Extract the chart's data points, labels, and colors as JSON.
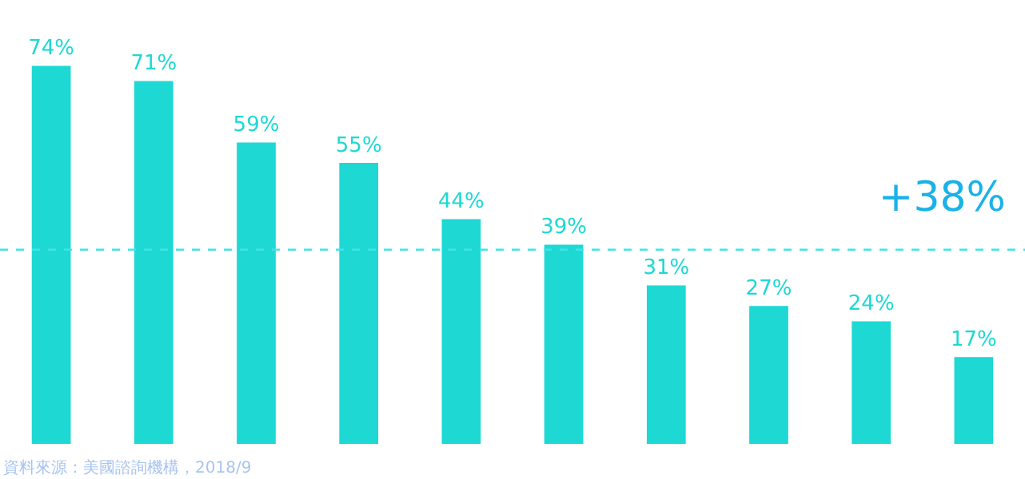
{
  "chart_data": {
    "type": "bar",
    "categories": [
      null,
      null,
      null,
      null,
      null,
      null,
      null,
      null,
      null,
      null
    ],
    "values": [
      74,
      71,
      59,
      55,
      44,
      39,
      31,
      27,
      24,
      17
    ],
    "color": "#1ed8d4",
    "value_labels": [
      "74%",
      "71%",
      "59%",
      "55%",
      "44%",
      "39%",
      "31%",
      "27%",
      "24%",
      "17%"
    ],
    "ref_lines": [
      {
        "axis": "y",
        "value": 38,
        "label": "+38%",
        "color": "#40e4e8",
        "line_style": "dashed"
      }
    ],
    "annotations": [
      "資料來源：美國諮詢機構，2018/9"
    ],
    "grid": false,
    "legend": false
  }
}
